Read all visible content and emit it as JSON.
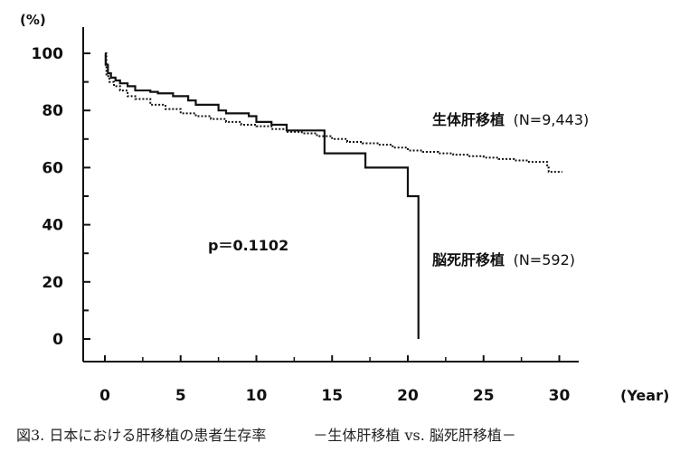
{
  "chart_data": {
    "type": "line",
    "unit_label": "(%)",
    "xlabel": "(Year)",
    "xlim": [
      0,
      31
    ],
    "ylim": [
      -8,
      104
    ],
    "x_ticks": [
      "0",
      "5",
      "10",
      "15",
      "20",
      "25",
      "30"
    ],
    "y_ticks": [
      "100",
      "80",
      "60",
      "40",
      "20",
      "0"
    ],
    "p_value_label": "p＝0.1102",
    "series": [
      {
        "name": "生体肝移植",
        "n_label": "(N=9,443)",
        "style": "dotted",
        "x": [
          0,
          0.1,
          0.3,
          0.6,
          1,
          1.5,
          2,
          3,
          4,
          5,
          6,
          7,
          8,
          9,
          10,
          11,
          12,
          13,
          14,
          15,
          16,
          17,
          18,
          19,
          20,
          21,
          22,
          23,
          24,
          25,
          26,
          27,
          28,
          29,
          29.2,
          29.3,
          30.2
        ],
        "y": [
          100,
          92,
          90,
          88.5,
          87,
          85,
          84,
          82,
          80.5,
          79,
          78,
          77,
          76,
          75,
          74.5,
          73.5,
          72.5,
          72,
          71,
          70,
          69,
          68.5,
          68,
          67,
          66,
          65.5,
          65,
          64.5,
          64,
          63.5,
          63,
          62.5,
          62,
          62,
          60,
          58.5,
          58.5
        ]
      },
      {
        "name": "脳死肝移植",
        "n_label": "(N=592)",
        "style": "solid",
        "x": [
          0,
          0.05,
          0.2,
          0.4,
          0.7,
          1,
          1.5,
          2,
          3,
          3.5,
          4.5,
          5.5,
          6,
          7.5,
          8,
          9.5,
          10,
          11,
          12,
          14,
          14.5,
          14.5,
          17.2,
          17.2,
          19.5,
          20,
          20,
          20.7,
          20.7
        ],
        "y": [
          100,
          96,
          93,
          91.5,
          90.5,
          89.5,
          88.5,
          87,
          86.5,
          86,
          85,
          83.5,
          82,
          80,
          79,
          78,
          76,
          75,
          73,
          73,
          72,
          65,
          65,
          60,
          60,
          60,
          50,
          50,
          0
        ]
      }
    ],
    "caption": {
      "left": "図3. 日本における肝移植の患者生存率",
      "right": "－生体肝移植 vs. 脳死肝移植－"
    }
  }
}
